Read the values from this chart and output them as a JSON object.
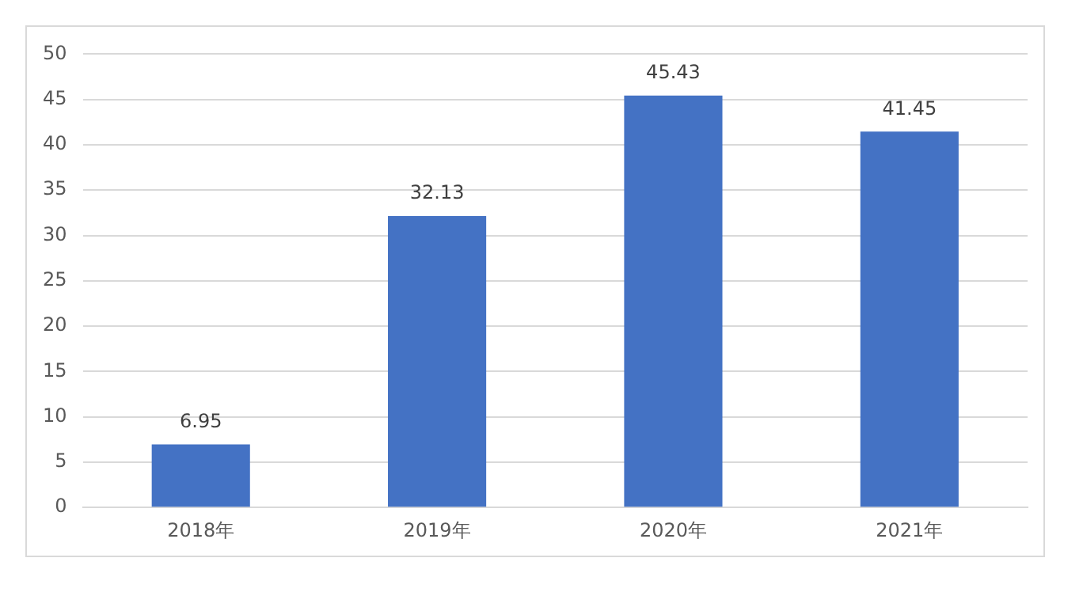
{
  "chart_data": {
    "type": "bar",
    "categories": [
      "2018年",
      "2019年",
      "2020年",
      "2021年"
    ],
    "values": [
      6.95,
      32.13,
      45.43,
      41.45
    ],
    "color": "#4472c4",
    "ylim": [
      0,
      50
    ],
    "yticks": [
      0,
      5,
      10,
      15,
      20,
      25,
      30,
      35,
      40,
      45,
      50
    ],
    "grid": "y",
    "legend": false,
    "data_labels": true
  }
}
